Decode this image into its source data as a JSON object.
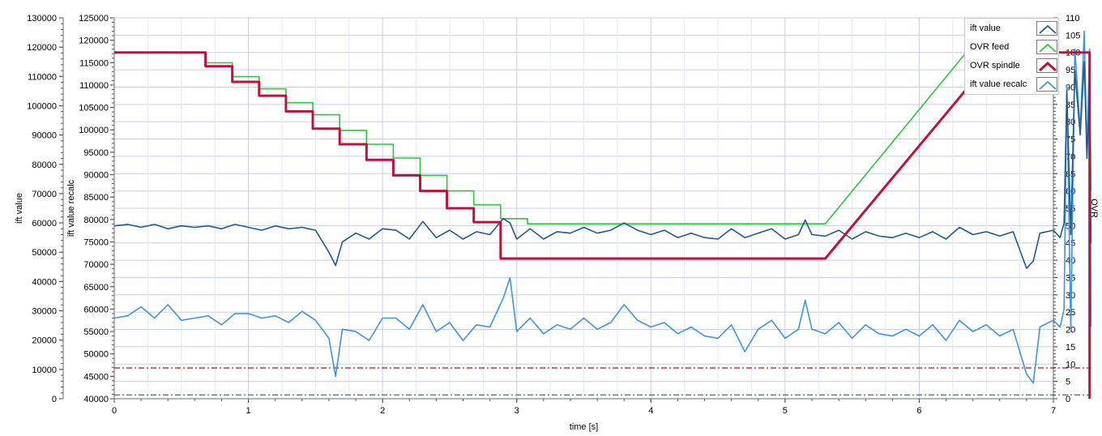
{
  "chart_data": {
    "type": "line",
    "x_axis": {
      "label": "time [s]",
      "range": [
        0,
        7
      ],
      "ticks": [
        "0",
        "1",
        "2",
        "3",
        "4",
        "5",
        "6",
        "7"
      ]
    },
    "y_axis_left_outer": {
      "label": "ift value",
      "range": [
        0,
        130000
      ],
      "ticks": [
        "0",
        "10000",
        "20000",
        "30000",
        "40000",
        "50000",
        "60000",
        "70000",
        "80000",
        "90000",
        "100000",
        "110000",
        "120000",
        "130000"
      ]
    },
    "y_axis_left_inner": {
      "label": "ift value recalc",
      "range": [
        40000,
        125000
      ],
      "ticks": [
        "40000",
        "45000",
        "50000",
        "55000",
        "60000",
        "65000",
        "70000",
        "75000",
        "80000",
        "85000",
        "90000",
        "95000",
        "100000",
        "105000",
        "110000",
        "115000",
        "120000",
        "125000"
      ]
    },
    "y_axis_right": {
      "label": "OVR",
      "range": [
        0,
        110
      ],
      "ticks": [
        "0",
        "5",
        "10",
        "15",
        "20",
        "25",
        "30",
        "35",
        "40",
        "45",
        "50",
        "55",
        "60",
        "65",
        "70",
        "75",
        "80",
        "85",
        "90",
        "95",
        "100",
        "105",
        "110"
      ]
    },
    "grid": true,
    "legend_position": "top-right",
    "series": [
      {
        "name": "ift value",
        "axis": "ift value",
        "color": "#1f5a94",
        "x": [
          0,
          0.1,
          0.2,
          0.3,
          0.4,
          0.5,
          0.6,
          0.7,
          0.8,
          0.9,
          1.0,
          1.1,
          1.2,
          1.3,
          1.4,
          1.5,
          1.6,
          1.65,
          1.7,
          1.8,
          1.9,
          2.0,
          2.1,
          2.2,
          2.3,
          2.4,
          2.5,
          2.6,
          2.7,
          2.8,
          2.9,
          2.95,
          3.0,
          3.1,
          3.2,
          3.3,
          3.4,
          3.5,
          3.6,
          3.7,
          3.8,
          3.9,
          4.0,
          4.1,
          4.2,
          4.3,
          4.4,
          4.5,
          4.6,
          4.7,
          4.8,
          4.9,
          5.0,
          5.1,
          5.15,
          5.2,
          5.3,
          5.4,
          5.5,
          5.6,
          5.7,
          5.8,
          5.9,
          6.0,
          6.1,
          6.2,
          6.3,
          6.4,
          6.5,
          6.6,
          6.7,
          6.8,
          6.85,
          6.9,
          7.0,
          7.05,
          7.08,
          7.1,
          7.13,
          7.16,
          7.2,
          7.23,
          7.25,
          7.27,
          7.28
        ],
        "values": [
          59000,
          59500,
          58500,
          59500,
          58000,
          59000,
          58500,
          59000,
          58000,
          59500,
          58500,
          57500,
          59000,
          58000,
          58500,
          57500,
          50000,
          45500,
          53500,
          56500,
          54500,
          58000,
          57500,
          54500,
          60500,
          55000,
          57500,
          54500,
          57000,
          56000,
          61500,
          60000,
          54500,
          58000,
          54500,
          57000,
          56500,
          58500,
          56500,
          57500,
          60000,
          57500,
          56000,
          57500,
          55000,
          56500,
          55000,
          54500,
          58000,
          55000,
          56500,
          58000,
          54500,
          56000,
          61000,
          56000,
          55500,
          57500,
          54500,
          57000,
          55500,
          55000,
          56500,
          55000,
          57000,
          54500,
          58500,
          56000,
          57000,
          55500,
          57000,
          44500,
          47000,
          56500,
          57500,
          55000,
          60000,
          105000,
          56000,
          112000,
          90000,
          115000,
          82000,
          105000,
          53000
        ]
      },
      {
        "name": "OVR feed",
        "axis": "OVR",
        "color": "#2cc63a",
        "x": [
          0,
          0.68,
          0.68,
          0.88,
          0.88,
          1.08,
          1.08,
          1.28,
          1.28,
          1.48,
          1.48,
          1.68,
          1.68,
          1.88,
          1.88,
          2.08,
          2.08,
          2.28,
          2.28,
          2.48,
          2.48,
          2.68,
          2.68,
          2.88,
          2.88,
          3.08,
          3.08,
          5.3,
          6.35,
          7.27,
          7.28
        ],
        "values": [
          100,
          100,
          97,
          97,
          93,
          93,
          89.5,
          89.5,
          85.5,
          85.5,
          82,
          82,
          77.5,
          77.5,
          73.5,
          73.5,
          69.5,
          69.5,
          64.5,
          64.5,
          60,
          60,
          56,
          56,
          52,
          52,
          50.5,
          50.5,
          100,
          100,
          60
        ]
      },
      {
        "name": "OVR spindle",
        "axis": "OVR",
        "color": "#c0103e",
        "x": [
          0,
          0.68,
          0.68,
          0.88,
          0.88,
          1.08,
          1.08,
          1.28,
          1.28,
          1.48,
          1.48,
          1.68,
          1.68,
          1.88,
          1.88,
          2.08,
          2.08,
          2.28,
          2.28,
          2.48,
          2.48,
          2.68,
          2.68,
          2.88,
          2.88,
          5.3,
          6.58,
          7.27,
          7.27
        ],
        "values": [
          100,
          100,
          96,
          96,
          91.5,
          91.5,
          87.5,
          87.5,
          83,
          83,
          78,
          78,
          73.5,
          73.5,
          69,
          69,
          64.5,
          64.5,
          60,
          60,
          55,
          55,
          51,
          51,
          40.5,
          40.5,
          100,
          100,
          0
        ]
      },
      {
        "name": "ift value recalc",
        "axis": "ift value recalc",
        "color": "#3f95dc",
        "x": [
          0,
          0.1,
          0.2,
          0.3,
          0.4,
          0.5,
          0.6,
          0.7,
          0.8,
          0.9,
          1.0,
          1.1,
          1.2,
          1.3,
          1.4,
          1.5,
          1.6,
          1.65,
          1.7,
          1.8,
          1.9,
          2.0,
          2.1,
          2.2,
          2.3,
          2.4,
          2.5,
          2.6,
          2.7,
          2.8,
          2.9,
          2.95,
          3.0,
          3.1,
          3.2,
          3.3,
          3.4,
          3.5,
          3.6,
          3.7,
          3.8,
          3.9,
          4.0,
          4.1,
          4.2,
          4.3,
          4.4,
          4.5,
          4.6,
          4.7,
          4.8,
          4.9,
          5.0,
          5.1,
          5.15,
          5.2,
          5.3,
          5.4,
          5.5,
          5.6,
          5.7,
          5.8,
          5.9,
          6.0,
          6.1,
          6.2,
          6.3,
          6.4,
          6.5,
          6.6,
          6.7,
          6.8,
          6.85,
          6.9,
          7.0,
          7.05,
          7.08,
          7.1,
          7.13,
          7.16,
          7.2,
          7.23,
          7.25,
          7.27,
          7.28
        ],
        "values": [
          58000,
          58500,
          60500,
          58000,
          61000,
          57500,
          58000,
          58500,
          56500,
          59000,
          59000,
          58000,
          58500,
          57000,
          59500,
          57500,
          53500,
          45000,
          55500,
          55000,
          53000,
          58000,
          58000,
          55500,
          61000,
          55000,
          57000,
          53000,
          56500,
          56000,
          62500,
          67000,
          55000,
          58000,
          54500,
          56500,
          55500,
          58000,
          55500,
          57000,
          61000,
          57500,
          56000,
          57000,
          54500,
          56000,
          54000,
          53500,
          56500,
          50500,
          55500,
          57500,
          53500,
          55500,
          62000,
          55500,
          54500,
          57000,
          53500,
          56500,
          54500,
          54000,
          55500,
          54000,
          56500,
          53000,
          57500,
          55000,
          56500,
          54000,
          55500,
          45500,
          43500,
          56000,
          57500,
          56000,
          60000,
          110000,
          55000,
          118000,
          100000,
          122000,
          95000,
          118000,
          56000
        ]
      },
      {
        "name": "",
        "axis": "ift value",
        "color": "#a01a1a",
        "style": "dash-dot",
        "x": [
          0,
          7.28
        ],
        "values": [
          10500,
          10500
        ]
      },
      {
        "name": "",
        "axis": "ift value",
        "color": "#0f6f73",
        "style": "dash-dot",
        "x": [
          0,
          7.28
        ],
        "values": [
          1300,
          1300
        ]
      }
    ]
  },
  "legend": {
    "items": [
      {
        "label": "ift value",
        "color": "#1f5a94",
        "width": 1.8
      },
      {
        "label": "OVR feed",
        "color": "#2cc63a",
        "width": 1.8
      },
      {
        "label": "OVR spindle",
        "color": "#c0103e",
        "width": 3
      },
      {
        "label": "ift value recalc",
        "color": "#3f95dc",
        "width": 1.8
      }
    ]
  }
}
